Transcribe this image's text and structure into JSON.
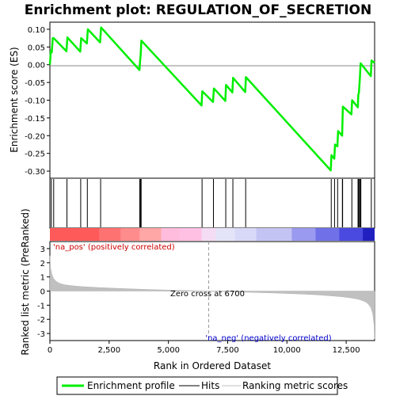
{
  "chart_data": {
    "type": "line",
    "title": "Enrichment plot: REGULATION_OF_SECRETION",
    "top_panel": {
      "ylabel": "Enrichment score (ES)",
      "ylim": [
        -0.32,
        0.12
      ],
      "yticks": [
        0.1,
        0.05,
        0.0,
        -0.05,
        -0.1,
        -0.15,
        -0.2,
        -0.25,
        -0.3
      ],
      "ytick_labels": [
        "0.10",
        "0.05",
        "0.00",
        "-0.05",
        "-0.10",
        "-0.15",
        "-0.20",
        "-0.25",
        "-0.30"
      ],
      "series": [
        {
          "name": "Enrichment profile",
          "color": "#00ee00",
          "x": [
            0,
            40,
            80,
            120,
            160,
            700,
            740,
            1280,
            1320,
            1560,
            1600,
            2120,
            2160,
            3780,
            3800,
            3830,
            3860,
            6400,
            6430,
            6880,
            6920,
            7400,
            7430,
            7700,
            7730,
            8240,
            8270,
            11850,
            11880,
            12000,
            12030,
            12130,
            12160,
            12330,
            12360,
            12720,
            12750,
            12990,
            13010,
            13040,
            13080,
            13110,
            13540,
            13570,
            13700
          ],
          "y": [
            0.0,
            0.04,
            0.035,
            0.075,
            0.075,
            0.038,
            0.077,
            0.037,
            0.075,
            0.06,
            0.1,
            0.063,
            0.105,
            -0.015,
            0.005,
            0.028,
            0.068,
            -0.115,
            -0.075,
            -0.105,
            -0.067,
            -0.102,
            -0.057,
            -0.078,
            -0.037,
            -0.077,
            -0.035,
            -0.298,
            -0.255,
            -0.265,
            -0.225,
            -0.23,
            -0.187,
            -0.2,
            -0.118,
            -0.14,
            -0.1,
            -0.12,
            -0.085,
            -0.078,
            -0.038,
            0.004,
            -0.032,
            0.012,
            0.005
          ]
        }
      ]
    },
    "hits": {
      "name": "Hits",
      "color": "#000000",
      "positions": [
        60,
        160,
        720,
        1300,
        1580,
        2140,
        3790,
        3820,
        3850,
        6420,
        6900,
        7420,
        7720,
        8260,
        11870,
        12010,
        12140,
        12340,
        12350,
        12740,
        13000,
        13020,
        13060,
        13090,
        13120,
        13560
      ]
    },
    "colorbar": {
      "segments": [
        {
          "from": 0,
          "to": 2100,
          "color": "#ff5a5a"
        },
        {
          "from": 2100,
          "to": 3000,
          "color": "#ff7272"
        },
        {
          "from": 3000,
          "to": 3800,
          "color": "#ff8c8c"
        },
        {
          "from": 3800,
          "to": 4700,
          "color": "#ffa6a6"
        },
        {
          "from": 4700,
          "to": 5500,
          "color": "#ffbcdc"
        },
        {
          "from": 5500,
          "to": 6400,
          "color": "#ffc0e4"
        },
        {
          "from": 6400,
          "to": 7000,
          "color": "#f4dcf4"
        },
        {
          "from": 7000,
          "to": 7800,
          "color": "#e4e4f8"
        },
        {
          "from": 7800,
          "to": 8700,
          "color": "#d8d8f8"
        },
        {
          "from": 8700,
          "to": 10200,
          "color": "#c4c4f4"
        },
        {
          "from": 10200,
          "to": 11200,
          "color": "#9a9af0"
        },
        {
          "from": 11200,
          "to": 12200,
          "color": "#7070e8"
        },
        {
          "from": 12200,
          "to": 13200,
          "color": "#4a4ae0"
        },
        {
          "from": 13200,
          "to": 13700,
          "color": "#2020c0"
        }
      ]
    },
    "bottom_panel": {
      "ylabel": "Ranked list metric (PreRanked)",
      "xlabel": "Rank in Ordered Dataset",
      "ylim": [
        -3.5,
        3.5
      ],
      "yticks": [
        3,
        2,
        1,
        0,
        -1,
        -2,
        -3
      ],
      "ytick_labels": [
        "3",
        "2",
        "1",
        "0",
        "-1",
        "-2",
        "-3"
      ],
      "xlim": [
        0,
        13700
      ],
      "xticks": [
        0,
        2500,
        5000,
        7500,
        10000,
        12500
      ],
      "xtick_labels": [
        "0",
        "2,500",
        "5,000",
        "7,500",
        "10,000",
        "12,500"
      ],
      "metric": {
        "name": "Ranking metric scores",
        "color": "#c0c0c0",
        "x": [
          0,
          30,
          80,
          150,
          250,
          400,
          600,
          900,
          1300,
          2000,
          3000,
          4000,
          5000,
          6000,
          6700,
          7500,
          8500,
          9500,
          10500,
          11200,
          11800,
          12300,
          12700,
          13000,
          13200,
          13350,
          13450,
          13550,
          13620,
          13680,
          13700
        ],
        "y": [
          2.5,
          1.6,
          1.2,
          0.9,
          0.7,
          0.55,
          0.45,
          0.38,
          0.32,
          0.25,
          0.18,
          0.12,
          0.07,
          0.03,
          0.0,
          -0.04,
          -0.09,
          -0.14,
          -0.2,
          -0.26,
          -0.33,
          -0.4,
          -0.48,
          -0.57,
          -0.68,
          -0.8,
          -0.95,
          -1.2,
          -1.6,
          -2.4,
          -3.4
        ]
      },
      "zero_cross": 6700,
      "zero_cross_label": "Zero cross at 6700",
      "pos_label": "'na_pos' (positively correlated)",
      "neg_label": "'na_neg' (negatively correlated)",
      "pos_label_color": "#cc0000",
      "neg_label_color": "#0000cc"
    },
    "legend": {
      "placement": "bottom",
      "items": [
        {
          "label": "Enrichment profile",
          "color": "#00ee00",
          "style": "thick-line"
        },
        {
          "label": "Hits",
          "color": "#000000",
          "style": "line"
        },
        {
          "label": "Ranking metric scores",
          "color": "#c0c0c0",
          "style": "line"
        }
      ]
    }
  }
}
